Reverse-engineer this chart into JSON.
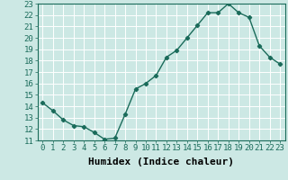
{
  "x": [
    0,
    1,
    2,
    3,
    4,
    5,
    6,
    7,
    8,
    9,
    10,
    11,
    12,
    13,
    14,
    15,
    16,
    17,
    18,
    19,
    20,
    21,
    22,
    23
  ],
  "y": [
    14.3,
    13.6,
    12.8,
    12.3,
    12.2,
    11.7,
    11.1,
    11.2,
    13.3,
    15.5,
    16.0,
    16.7,
    18.3,
    18.9,
    20.0,
    21.1,
    22.2,
    22.2,
    23.0,
    22.2,
    21.8,
    19.3,
    18.3,
    17.7
  ],
  "line_color": "#1a6b5a",
  "bg_color": "#cce8e4",
  "grid_color": "#ffffff",
  "xlabel": "Humidex (Indice chaleur)",
  "ylim": [
    11,
    23
  ],
  "xlim": [
    -0.5,
    23.5
  ],
  "yticks": [
    11,
    12,
    13,
    14,
    15,
    16,
    17,
    18,
    19,
    20,
    21,
    22,
    23
  ],
  "xticks": [
    0,
    1,
    2,
    3,
    4,
    5,
    6,
    7,
    8,
    9,
    10,
    11,
    12,
    13,
    14,
    15,
    16,
    17,
    18,
    19,
    20,
    21,
    22,
    23
  ],
  "marker": "D",
  "marker_size": 2.2,
  "line_width": 1.0,
  "xlabel_fontsize": 8,
  "tick_fontsize": 6.5
}
